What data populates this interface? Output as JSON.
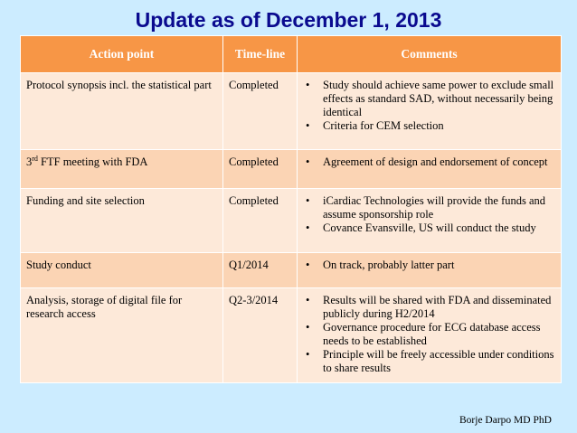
{
  "title": "Update as of December 1, 2013",
  "table": {
    "headers": [
      "Action point",
      "Time-line",
      "Comments"
    ],
    "rows": [
      {
        "action": "Protocol synopsis incl. the statistical part",
        "timeline": "Completed",
        "comments": [
          "Study should achieve same power to exclude small effects as standard SAD, without necessarily being identical",
          "Criteria for CEM selection"
        ]
      },
      {
        "action_prefix": "3",
        "action_sup": "rd",
        "action_rest": " FTF meeting with FDA",
        "timeline": "Completed",
        "comments": [
          "Agreement of design and endorsement of concept"
        ]
      },
      {
        "action": "Funding and site selection",
        "timeline": "Completed",
        "comments": [
          "iCardiac Technologies will provide the funds and assume sponsorship role",
          "Covance Evansville, US will conduct the study"
        ]
      },
      {
        "action": "Study conduct",
        "timeline": "Q1/2014",
        "comments": [
          "On track, probably latter part"
        ]
      },
      {
        "action": "Analysis, storage of digital file for research access",
        "timeline": "Q2-3/2014",
        "comments": [
          "Results will be shared with FDA and disseminated publicly during H2/2014",
          "Governance procedure for ECG database access needs to be established",
          "Principle will be freely accessible under conditions to share results"
        ]
      }
    ]
  },
  "footer": "Borje Darpo MD PhD",
  "colors": {
    "background": "#ccecff",
    "title": "#0a0a8f",
    "header_fill": "#f79646",
    "row_light": "#fde9d9",
    "row_dark": "#fbd4b4"
  }
}
